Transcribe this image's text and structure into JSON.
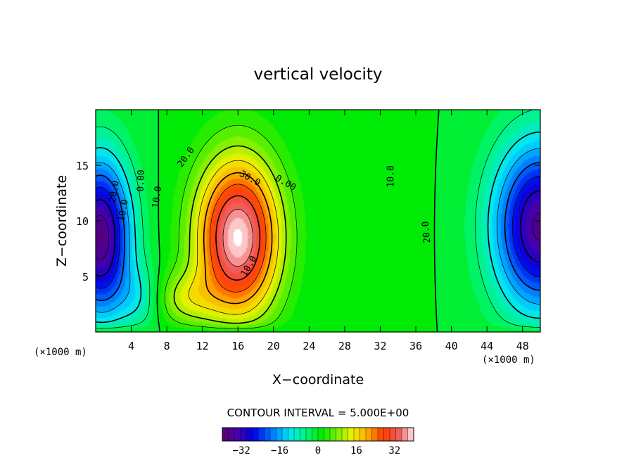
{
  "chart_data": {
    "type": "heatmap",
    "title": "vertical velocity",
    "xlabel": "X−coordinate",
    "ylabel": "Z−coordinate",
    "x_unit_left": "(×1000 m)",
    "x_unit_right": "(×1000 m)",
    "xlim": [
      0,
      50
    ],
    "ylim": [
      0,
      20
    ],
    "xticks": [
      "4",
      "8",
      "12",
      "16",
      "20",
      "24",
      "28",
      "32",
      "36",
      "40",
      "44",
      "48"
    ],
    "yticks": [
      "5",
      "10",
      "15"
    ],
    "contour_interval_text": "CONTOUR INTERVAL = 5.000E+00",
    "contour_interval": 5.0,
    "colorbar": {
      "range": [
        -40,
        40
      ],
      "ticks": [
        "−32",
        "−16",
        "0",
        "16",
        "32"
      ]
    },
    "contour_labels": [
      "20.0",
      "10.0",
      "0.00",
      "10.0",
      "20.0",
      "30.0",
      "0.00",
      "10.0",
      "10.0",
      "20.0"
    ],
    "features": [
      {
        "kind": "min",
        "x": 1.0,
        "z": 8.5,
        "value": -40
      },
      {
        "kind": "max",
        "x": 16.0,
        "z": 8.5,
        "value": 40
      },
      {
        "kind": "min",
        "x": 50.0,
        "z": 9.5,
        "value": -36
      }
    ],
    "zero_lines_x": [
      7.6,
      33.5
    ],
    "grid": false,
    "legend": "colorbar-bottom"
  }
}
